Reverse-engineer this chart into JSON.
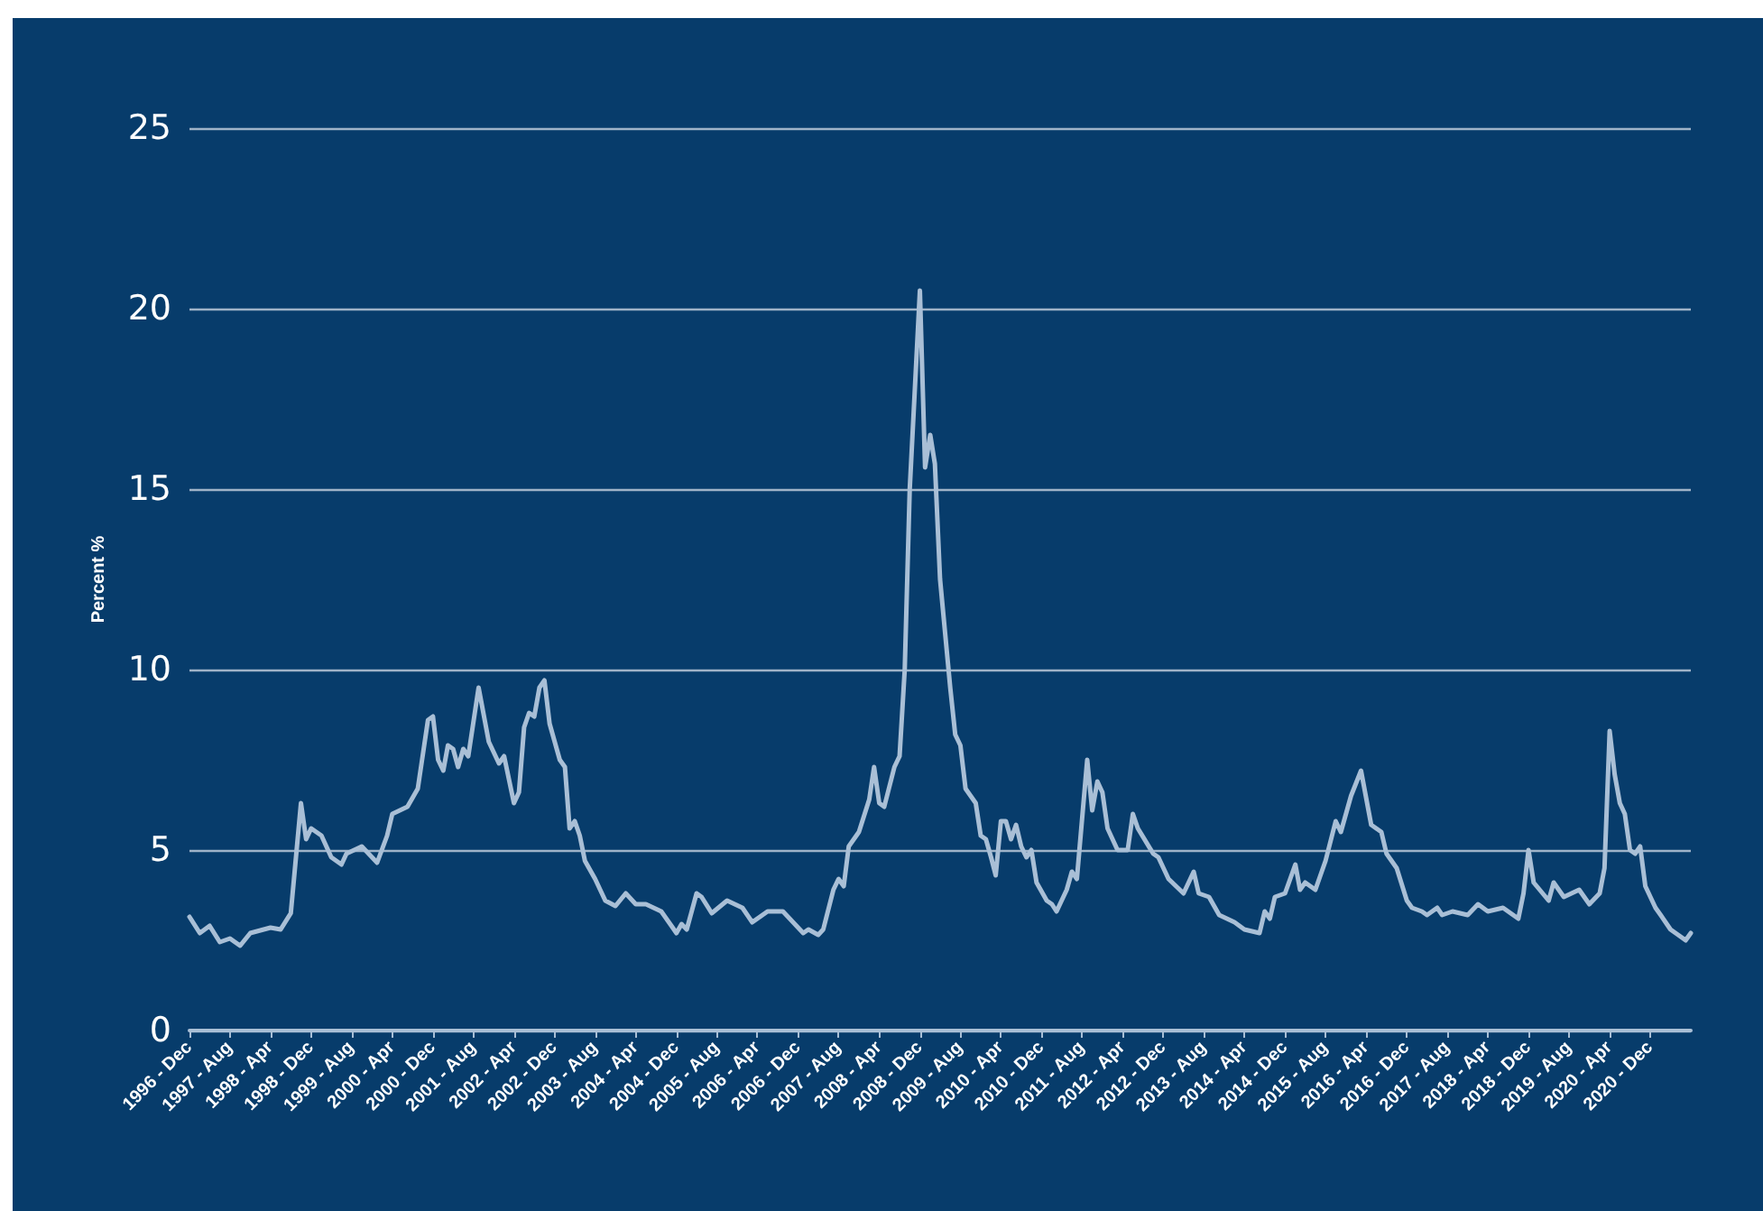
{
  "chart_data": {
    "type": "line",
    "ylabel": "Percent %",
    "color": "#a9bfd6",
    "ylim": [
      0,
      25
    ],
    "yticks": [
      0,
      5,
      10,
      15,
      20,
      25
    ],
    "grid": "y",
    "legend": false,
    "marker": "none",
    "line_style": "solid",
    "xlim": [
      "1996-12",
      "2021-08"
    ],
    "xticks": [
      {
        "value": "1996-12",
        "label": "1996 - Dec"
      },
      {
        "value": "1997-08",
        "label": "1997 - Aug"
      },
      {
        "value": "1998-04",
        "label": "1998 - Apr"
      },
      {
        "value": "1998-12",
        "label": "1998 - Dec"
      },
      {
        "value": "1999-08",
        "label": "1999 - Aug"
      },
      {
        "value": "2000-04",
        "label": "2000 - Apr"
      },
      {
        "value": "2000-12",
        "label": "2000 - Dec"
      },
      {
        "value": "2001-08",
        "label": "2001 - Aug"
      },
      {
        "value": "2002-04",
        "label": "2002 - Apr"
      },
      {
        "value": "2002-12",
        "label": "2002 - Dec"
      },
      {
        "value": "2003-08",
        "label": "2003 - Aug"
      },
      {
        "value": "2004-04",
        "label": "2004 - Apr"
      },
      {
        "value": "2004-12",
        "label": "2004 - Dec"
      },
      {
        "value": "2005-08",
        "label": "2005 - Aug"
      },
      {
        "value": "2006-04",
        "label": "2006 - Apr"
      },
      {
        "value": "2006-12",
        "label": "2006 - Dec"
      },
      {
        "value": "2007-08",
        "label": "2007 - Aug"
      },
      {
        "value": "2008-04",
        "label": "2008 - Apr"
      },
      {
        "value": "2008-12",
        "label": "2008 - Dec"
      },
      {
        "value": "2009-08",
        "label": "2009 - Aug"
      },
      {
        "value": "2010-04",
        "label": "2010 - Apr"
      },
      {
        "value": "2010-12",
        "label": "2010 - Dec"
      },
      {
        "value": "2011-08",
        "label": "2011 - Aug"
      },
      {
        "value": "2012-04",
        "label": "2012 - Apr"
      },
      {
        "value": "2012-12",
        "label": "2012 - Dec"
      },
      {
        "value": "2013-08",
        "label": "2013 - Aug"
      },
      {
        "value": "2014-04",
        "label": "2014 - Apr"
      },
      {
        "value": "2014-12",
        "label": "2014 - Dec"
      },
      {
        "value": "2015-08",
        "label": "2015 - Aug"
      },
      {
        "value": "2016-04",
        "label": "2016 - Apr"
      },
      {
        "value": "2016-12",
        "label": "2016 - Dec"
      },
      {
        "value": "2017-08",
        "label": "2017 - Aug"
      },
      {
        "value": "2018-04",
        "label": "2018 - Apr"
      },
      {
        "value": "2018-12",
        "label": "2018 - Dec"
      },
      {
        "value": "2019-08",
        "label": "2019 - Aug"
      },
      {
        "value": "2020-04",
        "label": "2020 - Apr"
      },
      {
        "value": "2020-12",
        "label": "2020 - Dec"
      }
    ],
    "x": [
      "1996-12",
      "1997-02",
      "1997-04",
      "1997-06",
      "1997-08",
      "1997-10",
      "1997-12",
      "1998-04",
      "1998-06",
      "1998-08",
      "1998-09",
      "1998-10",
      "1998-11",
      "1998-12",
      "1999-02",
      "1999-04",
      "1999-06",
      "1999-07",
      "1999-10",
      "2000-01",
      "2000-03",
      "2000-04",
      "2000-07",
      "2000-09",
      "2000-11",
      "2000-12",
      "2001-01",
      "2001-02",
      "2001-03",
      "2001-04",
      "2001-05",
      "2001-06",
      "2001-07",
      "2001-09",
      "2001-11",
      "2002-01",
      "2002-02",
      "2002-04",
      "2002-05",
      "2002-06",
      "2002-07",
      "2002-08",
      "2002-09",
      "2002-10",
      "2002-11",
      "2003-01",
      "2003-02",
      "2003-03",
      "2003-04",
      "2003-05",
      "2003-06",
      "2003-08",
      "2003-10",
      "2003-12",
      "2004-02",
      "2004-04",
      "2004-06",
      "2004-09",
      "2004-11",
      "2004-12",
      "2005-01",
      "2005-02",
      "2005-04",
      "2005-05",
      "2005-07",
      "2005-10",
      "2006-01",
      "2006-03",
      "2006-06",
      "2006-09",
      "2007-01",
      "2007-02",
      "2007-04",
      "2007-05",
      "2007-07",
      "2007-08",
      "2007-09",
      "2007-10",
      "2007-12",
      "2008-02",
      "2008-03",
      "2008-04",
      "2008-05",
      "2008-07",
      "2008-08",
      "2008-09",
      "2008-10",
      "2008-12",
      "2009-01",
      "2009-02",
      "2009-03",
      "2009-04",
      "2009-06",
      "2009-07",
      "2009-08",
      "2009-09",
      "2009-11",
      "2009-12",
      "2010-01",
      "2010-02",
      "2010-03",
      "2010-04",
      "2010-05",
      "2010-06",
      "2010-07",
      "2010-08",
      "2010-09",
      "2010-10",
      "2010-11",
      "2011-01",
      "2011-02",
      "2011-03",
      "2011-05",
      "2011-06",
      "2011-07",
      "2011-09",
      "2011-10",
      "2011-11",
      "2011-12",
      "2012-01",
      "2012-03",
      "2012-05",
      "2012-06",
      "2012-07",
      "2012-10",
      "2012-11",
      "2013-01",
      "2013-04",
      "2013-06",
      "2013-07",
      "2013-09",
      "2013-11",
      "2014-02",
      "2014-04",
      "2014-07",
      "2014-08",
      "2014-09",
      "2014-10",
      "2014-12",
      "2015-02",
      "2015-03",
      "2015-04",
      "2015-06",
      "2015-08",
      "2015-10",
      "2015-11",
      "2016-01",
      "2016-03",
      "2016-05",
      "2016-07",
      "2016-08",
      "2016-10",
      "2016-12",
      "2017-01",
      "2017-03",
      "2017-04",
      "2017-06",
      "2017-07",
      "2017-09",
      "2017-12",
      "2018-02",
      "2018-04",
      "2018-07",
      "2018-10",
      "2018-11",
      "2018-12",
      "2019-01",
      "2019-04",
      "2019-05",
      "2019-07",
      "2019-10",
      "2019-12",
      "2020-02",
      "2020-03",
      "2020-04",
      "2020-05",
      "2020-06",
      "2020-07",
      "2020-08",
      "2020-09",
      "2020-10",
      "2020-11",
      "2021-01",
      "2021-02",
      "2021-04",
      "2021-06",
      "2021-07",
      "2021-08"
    ],
    "values": [
      3.15,
      2.7,
      2.9,
      2.45,
      2.55,
      2.35,
      2.7,
      2.85,
      2.8,
      3.25,
      4.8,
      6.3,
      5.3,
      5.6,
      5.4,
      4.8,
      4.6,
      4.9,
      5.1,
      4.65,
      5.4,
      6.0,
      6.2,
      6.7,
      8.6,
      8.7,
      7.5,
      7.2,
      7.9,
      7.8,
      7.3,
      7.8,
      7.6,
      9.5,
      8.0,
      7.4,
      7.6,
      6.3,
      6.6,
      8.4,
      8.8,
      8.7,
      9.5,
      9.7,
      8.5,
      7.5,
      7.3,
      5.6,
      5.8,
      5.4,
      4.7,
      4.2,
      3.6,
      3.45,
      3.8,
      3.5,
      3.5,
      3.3,
      2.9,
      2.7,
      2.95,
      2.8,
      3.8,
      3.7,
      3.25,
      3.6,
      3.4,
      3.0,
      3.3,
      3.3,
      2.7,
      2.8,
      2.65,
      2.8,
      3.9,
      4.2,
      4.0,
      5.1,
      5.5,
      6.4,
      7.3,
      6.3,
      6.2,
      7.3,
      7.6,
      10,
      15,
      20.5,
      15.6,
      16.5,
      15.7,
      12.5,
      9.5,
      8.2,
      7.9,
      6.7,
      6.3,
      5.4,
      5.3,
      4.8,
      4.3,
      5.8,
      5.8,
      5.3,
      5.7,
      5.1,
      4.8,
      5.0,
      4.1,
      3.6,
      3.5,
      3.3,
      3.9,
      4.4,
      4.2,
      7.5,
      6.1,
      6.9,
      6.6,
      5.6,
      5.0,
      5.0,
      6.0,
      5.6,
      4.9,
      4.8,
      4.2,
      3.8,
      4.4,
      3.8,
      3.7,
      3.2,
      3.0,
      2.8,
      2.7,
      3.3,
      3.1,
      3.7,
      3.8,
      4.6,
      3.9,
      4.1,
      3.9,
      4.7,
      5.8,
      5.5,
      6.5,
      7.2,
      5.7,
      5.5,
      4.9,
      4.5,
      3.6,
      3.4,
      3.3,
      3.2,
      3.4,
      3.2,
      3.3,
      3.2,
      3.5,
      3.3,
      3.4,
      3.1,
      3.8,
      5.0,
      4.1,
      3.6,
      4.1,
      3.7,
      3.9,
      3.5,
      3.8,
      4.5,
      8.3,
      7.1,
      6.3,
      6.0,
      5.0,
      4.9,
      5.1,
      4.0,
      3.4,
      3.2,
      2.8,
      2.6,
      2.5,
      2.7
    ]
  }
}
